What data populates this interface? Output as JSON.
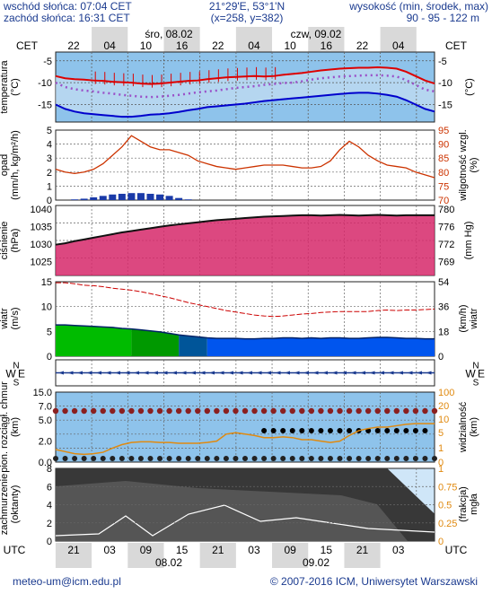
{
  "header": {
    "sunrise": "wschód słońca: 07:04 CET",
    "sunset": "zachód słońca: 16:31 CET",
    "coords": "21°29'E, 53°1'N",
    "grid": "(x=258, y=382)",
    "height_label": "wysokość (min, środek, max)",
    "height_values": "90 - 95 - 122 m"
  },
  "timeline": {
    "tz": "CET",
    "tz_bottom": "UTC",
    "day1_top": "śro, 08.02",
    "day2_top": "czw, 09.02",
    "day1_bottom": "08.02",
    "day2_bottom": "09.02",
    "top_ticks": [
      "22",
      "04",
      "10",
      "16",
      "22",
      "04",
      "10",
      "16",
      "22",
      "04"
    ],
    "bottom_ticks": [
      "21",
      "03",
      "09",
      "15",
      "21",
      "03",
      "09",
      "15",
      "21",
      "03"
    ]
  },
  "footer": {
    "email": "meteo-um@icm.edu.pl",
    "copyright": "© 2007-2016 ICM, Uniwersytet Warszawski"
  },
  "colors": {
    "sky": "#8ec3eb",
    "sky_light": "#cfe3f4",
    "night_band": "#d9d9d9",
    "temp_red": "#dd0000",
    "temp_blue": "#0000cc",
    "rain_line": "#cc3300",
    "pressure_fill": "#d6286a",
    "pressure_dark": "#8a1030",
    "wind_green": "#00bb00",
    "wind_blue": "#0055ee",
    "cloud_dark": "#383838",
    "vis_line": "#e08a10"
  },
  "chart_data": [
    {
      "type": "line",
      "panel": "temperature",
      "ylabel": "temperatura (°C)",
      "ylabel_right": "(°C)",
      "ylim": [
        -19,
        -3
      ],
      "yticks": [
        -5,
        -10,
        -15
      ],
      "series": [
        {
          "values": [
            -8.5,
            -9,
            -9.2,
            -9.3,
            -9.5,
            -9.6,
            -9.8,
            -9.9,
            -10,
            -10.2,
            -10.3,
            -10.2,
            -10,
            -9.8,
            -9.6,
            -9.5,
            -9.2,
            -9,
            -8.8,
            -8.7,
            -8.6,
            -8.5,
            -8.6,
            -8.5,
            -8.2,
            -8,
            -7.8,
            -7.5,
            -7.2,
            -7,
            -6.8,
            -6.7,
            -6.6,
            -6.6,
            -6.5,
            -6.6,
            -6.8,
            -7.5,
            -8.5,
            -9.5,
            -10.2
          ]
        },
        {
          "values": [
            -10,
            -11,
            -11.5,
            -11.8,
            -12,
            -12.3,
            -12.5,
            -12.8,
            -13,
            -13.2,
            -13.3,
            -13.2,
            -13,
            -12.8,
            -12.5,
            -12.2,
            -12,
            -11.8,
            -11.5,
            -11.2,
            -11,
            -10.8,
            -10.5,
            -10.3,
            -10.1,
            -10,
            -9.7,
            -9.3,
            -9,
            -8.8,
            -8.6,
            -8.5,
            -8.4,
            -8.3,
            -8.3,
            -8.4,
            -8.6,
            -9.4,
            -10.5,
            -11.6,
            -12
          ]
        },
        {
          "values": [
            -15,
            -16,
            -16.6,
            -17,
            -17.2,
            -17.4,
            -17.6,
            -17.8,
            -17.8,
            -17.6,
            -17.3,
            -17.2,
            -17,
            -16.7,
            -16.3,
            -16,
            -15.6,
            -15.4,
            -15.2,
            -15,
            -14.8,
            -14.5,
            -14.2,
            -14,
            -13.8,
            -13.6,
            -13.4,
            -13.2,
            -13,
            -12.8,
            -12.6,
            -12.4,
            -12.3,
            -12.3,
            -12.5,
            -12.8,
            -13.2,
            -14,
            -15,
            -16,
            -16.6
          ]
        }
      ]
    },
    {
      "type": "line",
      "panel": "precipitation_humidity",
      "ylabel": "opad (mm/h, kg/m²/h)",
      "ylabel_right": "wilgotność wzgl. (%)",
      "ylim": [
        0,
        5
      ],
      "yticks": [
        5,
        4,
        3,
        2,
        1,
        0
      ],
      "ylim_right": [
        70,
        95
      ],
      "yticks_right": [
        95,
        90,
        85,
        80,
        75,
        70
      ],
      "series": [
        {
          "values": [
            81,
            80,
            79.5,
            80,
            81,
            83,
            86,
            89,
            93,
            91,
            89,
            88,
            88,
            87,
            86,
            84,
            83,
            82,
            81.5,
            81,
            81.5,
            82,
            82.5,
            82.5,
            82.5,
            82,
            81.5,
            81.5,
            82,
            84,
            88,
            91,
            89,
            86,
            84,
            82.5,
            82,
            81.5,
            80,
            79,
            78
          ]
        },
        {
          "values": [
            0,
            0,
            0.05,
            0.1,
            0.2,
            0.3,
            0.4,
            0.45,
            0.5,
            0.5,
            0.45,
            0.4,
            0.3,
            0.15,
            0.05,
            0,
            0,
            0,
            0,
            0,
            0,
            0,
            0,
            0,
            0,
            0,
            0,
            0,
            0,
            0,
            0,
            0,
            0,
            0,
            0,
            0,
            0,
            0,
            0,
            0,
            0
          ]
        }
      ]
    },
    {
      "type": "area",
      "panel": "pressure",
      "ylabel": "ciśnienie (hPa)",
      "ylabel_right": "(mm Hg)",
      "ylim": [
        1021,
        1041
      ],
      "yticks": [
        1040,
        1035,
        1030,
        1025
      ],
      "yticks_right": [
        "780",
        "776",
        "772",
        "769"
      ],
      "series": [
        {
          "values": [
            1029.8,
            1030.2,
            1030.8,
            1031.3,
            1031.8,
            1032.3,
            1032.8,
            1033.3,
            1033.7,
            1034.1,
            1034.5,
            1034.9,
            1035.3,
            1035.6,
            1035.9,
            1036.2,
            1036.5,
            1036.8,
            1037,
            1037.2,
            1037.4,
            1037.6,
            1037.8,
            1037.9,
            1038,
            1038.1,
            1038.2,
            1038.2,
            1038.1,
            1038.2,
            1038.3,
            1038.2,
            1038.1,
            1038.2,
            1038.3,
            1038.2,
            1038.1,
            1038.2,
            1038.2,
            1038.2,
            1038.2
          ]
        }
      ]
    },
    {
      "type": "area",
      "panel": "wind",
      "ylabel": "wiatr (m/s)",
      "ylabel_right": "(km/h) wiatr",
      "ylim": [
        0,
        15
      ],
      "yticks": [
        15,
        10,
        5,
        0
      ],
      "yticks_right": [
        "54",
        "36",
        "18",
        "0"
      ],
      "series": [
        {
          "values": [
            6.3,
            6.3,
            6.2,
            6.1,
            6,
            5.9,
            5.8,
            5.6,
            5.5,
            5.3,
            5.1,
            4.9,
            4.6,
            4.3,
            4.1,
            3.9,
            3.7,
            3.6,
            3.6,
            3.6,
            3.5,
            3.5,
            3.6,
            3.6,
            3.7,
            3.7,
            3.6,
            3.7,
            3.6,
            3.7,
            3.7,
            3.6,
            3.6,
            3.7,
            3.8,
            3.8,
            3.7,
            3.6,
            3.6,
            3.5,
            3.5
          ]
        },
        {
          "values": [
            14.8,
            14.8,
            14.6,
            14.3,
            14.2,
            14,
            13.7,
            13.5,
            13.3,
            13,
            12.6,
            12.2,
            11.8,
            11.3,
            10.8,
            10.4,
            10,
            9.6,
            9.2,
            8.9,
            8.6,
            8.3,
            8.1,
            8,
            8.1,
            8.3,
            8.5,
            8.6,
            8.8,
            8.9,
            9,
            9,
            9,
            9,
            9.2,
            9.3,
            9.2,
            9.3,
            9.3,
            9.4,
            9.5
          ]
        }
      ]
    },
    {
      "type": "scatter",
      "panel": "cloud_base_visibility",
      "ylabel": "pion. rozciągł. chmur (km)",
      "ylabel_right": "widzialność (km)",
      "ylim": [
        0,
        15
      ],
      "yticks": [
        "15.0",
        "7.0",
        "5.0",
        "2.0",
        "0.0"
      ],
      "ylim_right": [
        0,
        100
      ],
      "yticks_right": [
        "100",
        "20",
        "10",
        "5",
        "1",
        "0"
      ],
      "series": [
        {
          "values": [
            18,
            15,
            12,
            11,
            12,
            14,
            20,
            25,
            28,
            29,
            29,
            28,
            28,
            27,
            27,
            27,
            28,
            30,
            40,
            42,
            40,
            38,
            35,
            35,
            36,
            35,
            32,
            32,
            30,
            28,
            30,
            38,
            45,
            48,
            50,
            50,
            52,
            54,
            55,
            55,
            55
          ]
        }
      ]
    },
    {
      "type": "area",
      "panel": "cloud_cover_fog",
      "ylabel": "zachmurzenie (oktanty)",
      "ylabel_right": "(frakcja) mgła",
      "ylim": [
        0,
        8
      ],
      "yticks": [
        8,
        6,
        4,
        2,
        0
      ],
      "ylim_right": [
        0,
        1
      ],
      "yticks_right": [
        "1",
        "0.75",
        "0.5",
        "0.25",
        "0"
      ],
      "series": [
        {
          "values": [
            8,
            8,
            8,
            8,
            8,
            8,
            8,
            8,
            8,
            8,
            8,
            8,
            8,
            8,
            8,
            8,
            8,
            8,
            8,
            8,
            8,
            8,
            8,
            8,
            8,
            8,
            8,
            8,
            8,
            8,
            8,
            8,
            8,
            8,
            8,
            8,
            7,
            6,
            5,
            4,
            3
          ]
        }
      ]
    }
  ]
}
